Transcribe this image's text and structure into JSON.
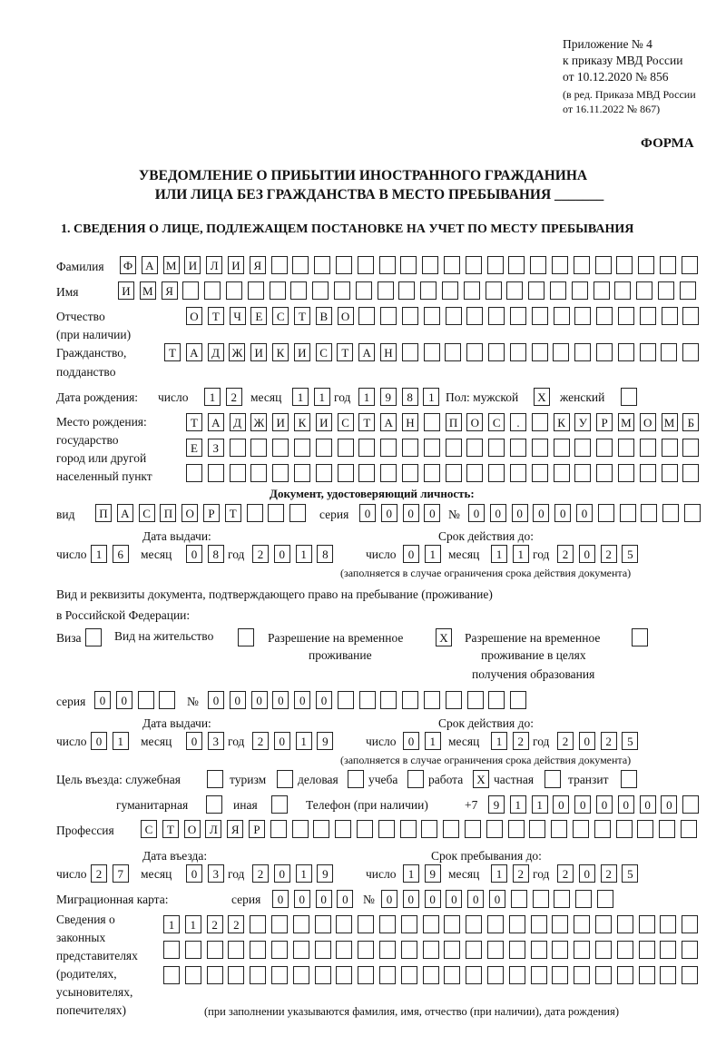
{
  "header": {
    "l1": "Приложение № 4",
    "l2": "к приказу МВД России",
    "l3": "от 10.12.2020 № 856",
    "l4": "(в ред. Приказа МВД России",
    "l5": "от 16.11.2022 № 867)",
    "forma": "ФОРМА"
  },
  "title": {
    "l1": "УВЕДОМЛЕНИЕ О ПРИБЫТИИ ИНОСТРАННОГО ГРАЖДАНИНА",
    "l2": "ИЛИ ЛИЦА БЕЗ ГРАЖДАНСТВА В МЕСТО ПРЕБЫВАНИЯ _______"
  },
  "section1": "1. СВЕДЕНИЯ О ЛИЦЕ, ПОДЛЕЖАЩЕМ ПОСТАНОВКЕ НА УЧЕТ ПО МЕСТУ ПРЕБЫВАНИЯ",
  "labels": {
    "surname": "Фамилия",
    "name": "Имя",
    "patronymic1": "Отчество",
    "patronymic2": "(при наличии)",
    "citizenship1": "Гражданство,",
    "citizenship2": "подданство",
    "birth_date": "Дата рождения:",
    "day": "число",
    "month": "месяц",
    "year": "год",
    "sex": "Пол: мужской",
    "female": "женский",
    "birthplace1": "Место рождения:",
    "birthplace2": "государство",
    "birthplace3": "город или другой",
    "birthplace4": "населенный пункт",
    "id_doc": "Документ, удостоверяющий личность:",
    "kind": "вид",
    "series": "серия",
    "number": "№",
    "issue_date": "Дата выдачи:",
    "valid_until": "Срок действия до:",
    "valid_note": "(заполняется в случае ограничения срока действия документа)",
    "right_doc1": "Вид и реквизиты документа, подтверждающего право на пребывание (проживание)",
    "right_doc2": "в Российской Федерации:",
    "visa": "Виза",
    "residence": "Вид на жительство",
    "temp1": "Разрешение на временное",
    "temp2": "проживание",
    "tempedu1": "Разрешение на временное",
    "tempedu2": "проживание в целях",
    "tempedu3": "получения образования",
    "purpose": "Цель въезда: служебная",
    "tourism": "туризм",
    "business": "деловая",
    "study": "учеба",
    "work": "работа",
    "private": "частная",
    "transit": "транзит",
    "humanitarian": "гуманитарная",
    "other": "иная",
    "phone": "Телефон (при наличии)",
    "phone_prefix": "+7",
    "profession": "Профессия",
    "entry_date": "Дата въезда:",
    "stay_until": "Срок пребывания до:",
    "migration_card": "Миграционная карта:",
    "reps1": "Сведения о",
    "reps2": "законных",
    "reps3": "представителях",
    "reps4": "(родителях,",
    "reps5": "усыновителях,",
    "reps6": "попечителях)",
    "reps_note": "(при заполнении указываются фамилия, имя, отчество (при наличии), дата рождения)"
  },
  "fields": {
    "surname": [
      "Ф",
      "А",
      "М",
      "И",
      "Л",
      "И",
      "Я"
    ],
    "name": [
      "И",
      "М",
      "Я"
    ],
    "patronymic": [
      "О",
      "Т",
      "Ч",
      "Е",
      "С",
      "Т",
      "В",
      "О"
    ],
    "citizenship": [
      "Т",
      "А",
      "Д",
      "Ж",
      "И",
      "К",
      "И",
      "С",
      "Т",
      "А",
      "Н"
    ],
    "birth_day": [
      "1",
      "2"
    ],
    "birth_month": [
      "1",
      "1"
    ],
    "birth_year": [
      "1",
      "9",
      "8",
      "1"
    ],
    "sex_male": [
      "X"
    ],
    "sex_female": [],
    "birthplace_1": [
      "Т",
      "А",
      "Д",
      "Ж",
      "И",
      "К",
      "И",
      "С",
      "Т",
      "А",
      "Н",
      "",
      "П",
      "О",
      "С",
      ".",
      "",
      "К",
      "У",
      "Р",
      "М",
      "О",
      "М",
      "Б"
    ],
    "birthplace_2": [
      "Е",
      "З"
    ],
    "birthplace_3": [],
    "doc_kind": [
      "П",
      "А",
      "С",
      "П",
      "О",
      "Р",
      "Т"
    ],
    "doc_series": [
      "0",
      "0",
      "0",
      "0"
    ],
    "doc_number": [
      "0",
      "0",
      "0",
      "0",
      "0",
      "0"
    ],
    "doc_issue_day": [
      "1",
      "6"
    ],
    "doc_issue_month": [
      "0",
      "8"
    ],
    "doc_issue_year": [
      "2",
      "0",
      "1",
      "8"
    ],
    "doc_valid_day": [
      "0",
      "1"
    ],
    "doc_valid_month": [
      "1",
      "1"
    ],
    "doc_valid_year": [
      "2",
      "0",
      "2",
      "5"
    ],
    "visa": [],
    "residence": [],
    "temp_residence": [
      "X"
    ],
    "temp_residence_edu": [],
    "right_series": [
      "0",
      "0"
    ],
    "right_number": [
      "0",
      "0",
      "0",
      "0",
      "0",
      "0"
    ],
    "right_issue_day": [
      "0",
      "1"
    ],
    "right_issue_month": [
      "0",
      "3"
    ],
    "right_issue_year": [
      "2",
      "0",
      "1",
      "9"
    ],
    "right_valid_day": [
      "0",
      "1"
    ],
    "right_valid_month": [
      "1",
      "2"
    ],
    "right_valid_year": [
      "2",
      "0",
      "2",
      "5"
    ],
    "p_service": [],
    "p_tourism": [],
    "p_business": [],
    "p_study": [],
    "p_work": [
      "X"
    ],
    "p_private": [],
    "p_transit": [],
    "p_humanitarian": [],
    "p_other": [],
    "phone": [
      "9",
      "1",
      "1",
      "0",
      "0",
      "0",
      "0",
      "0",
      "0"
    ],
    "profession": [
      "С",
      "Т",
      "О",
      "Л",
      "Я",
      "Р"
    ],
    "entry_day": [
      "2",
      "7"
    ],
    "entry_month": [
      "0",
      "3"
    ],
    "entry_year": [
      "2",
      "0",
      "1",
      "9"
    ],
    "stay_day": [
      "1",
      "9"
    ],
    "stay_month": [
      "1",
      "2"
    ],
    "stay_year": [
      "2",
      "0",
      "2",
      "5"
    ],
    "mc_series": [
      "0",
      "0",
      "0",
      "0"
    ],
    "mc_number": [
      "0",
      "0",
      "0",
      "0",
      "0",
      "0"
    ],
    "reps_1": [
      "1",
      "1",
      "2",
      "2"
    ],
    "reps_2": [],
    "reps_3": []
  }
}
